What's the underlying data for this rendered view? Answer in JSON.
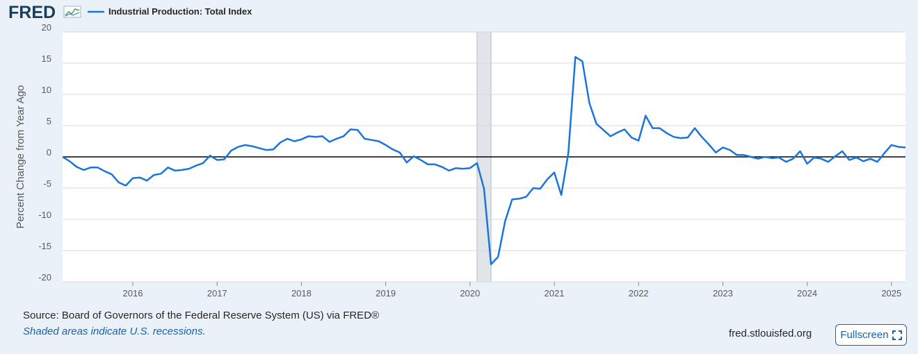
{
  "logo": {
    "text": "FRED"
  },
  "legend": {
    "series_label": "Industrial Production: Total Index",
    "line_color": "#1a74d9"
  },
  "footer": {
    "source": "Source: Board of Governors of the Federal Reserve System (US) via FRED®",
    "recession_note": "Shaded areas indicate U.S. recessions.",
    "site": "fred.stlouisfed.org",
    "fullscreen_label": "Fullscreen"
  },
  "colors": {
    "line": "#1a74d9",
    "recession": "#e1e4e8",
    "zero_line": "#000000",
    "brand": "#1761b5"
  },
  "chart_data": {
    "type": "line",
    "title": "Industrial Production: Total Index",
    "xlabel": "",
    "ylabel": "Percent Change from Year Ago",
    "ylim": [
      -20,
      20
    ],
    "xlim": [
      "2015-03-01",
      "2025-03-01"
    ],
    "yticks": [
      20,
      15,
      10,
      5,
      0,
      -5,
      -10,
      -15,
      -20
    ],
    "xticks": [
      "2016",
      "2017",
      "2018",
      "2019",
      "2020",
      "2021",
      "2022",
      "2023",
      "2024",
      "2025"
    ],
    "grid": true,
    "recessions": [
      {
        "start": "2020-02-01",
        "end": "2020-04-01"
      }
    ],
    "series": [
      {
        "name": "Industrial Production: Total Index",
        "x": [
          "2015-03",
          "2015-04",
          "2015-05",
          "2015-06",
          "2015-07",
          "2015-08",
          "2015-09",
          "2015-10",
          "2015-11",
          "2015-12",
          "2016-01",
          "2016-02",
          "2016-03",
          "2016-04",
          "2016-05",
          "2016-06",
          "2016-07",
          "2016-08",
          "2016-09",
          "2016-10",
          "2016-11",
          "2016-12",
          "2017-01",
          "2017-02",
          "2017-03",
          "2017-04",
          "2017-05",
          "2017-06",
          "2017-07",
          "2017-08",
          "2017-09",
          "2017-10",
          "2017-11",
          "2017-12",
          "2018-01",
          "2018-02",
          "2018-03",
          "2018-04",
          "2018-05",
          "2018-06",
          "2018-07",
          "2018-08",
          "2018-09",
          "2018-10",
          "2018-11",
          "2018-12",
          "2019-01",
          "2019-02",
          "2019-03",
          "2019-04",
          "2019-05",
          "2019-06",
          "2019-07",
          "2019-08",
          "2019-09",
          "2019-10",
          "2019-11",
          "2019-12",
          "2020-01",
          "2020-02",
          "2020-03",
          "2020-04",
          "2020-05",
          "2020-06",
          "2020-07",
          "2020-08",
          "2020-09",
          "2020-10",
          "2020-11",
          "2020-12",
          "2021-01",
          "2021-02",
          "2021-03",
          "2021-04",
          "2021-05",
          "2021-06",
          "2021-07",
          "2021-08",
          "2021-09",
          "2021-10",
          "2021-11",
          "2021-12",
          "2022-01",
          "2022-02",
          "2022-03",
          "2022-04",
          "2022-05",
          "2022-06",
          "2022-07",
          "2022-08",
          "2022-09",
          "2022-10",
          "2022-11",
          "2022-12",
          "2023-01",
          "2023-02",
          "2023-03",
          "2023-04",
          "2023-05",
          "2023-06",
          "2023-07",
          "2023-08",
          "2023-09",
          "2023-10",
          "2023-11",
          "2023-12",
          "2024-01",
          "2024-02",
          "2024-03",
          "2024-04",
          "2024-05",
          "2024-06",
          "2024-07",
          "2024-08",
          "2024-09",
          "2024-10",
          "2024-11",
          "2024-12",
          "2025-01",
          "2025-02",
          "2025-03"
        ],
        "y": [
          0.0,
          -0.7,
          -1.6,
          -2.1,
          -1.7,
          -1.7,
          -2.3,
          -2.8,
          -4.1,
          -4.6,
          -3.4,
          -3.3,
          -3.8,
          -2.9,
          -2.7,
          -1.7,
          -2.2,
          -2.1,
          -1.9,
          -1.4,
          -1.0,
          0.2,
          -0.5,
          -0.4,
          1.0,
          1.6,
          1.9,
          1.7,
          1.4,
          1.1,
          1.2,
          2.3,
          2.9,
          2.5,
          2.8,
          3.3,
          3.2,
          3.3,
          2.4,
          2.9,
          3.3,
          4.4,
          4.3,
          2.9,
          2.7,
          2.5,
          1.9,
          1.2,
          0.7,
          -0.9,
          0.1,
          -0.5,
          -1.2,
          -1.2,
          -1.6,
          -2.2,
          -1.8,
          -1.9,
          -1.8,
          -1.0,
          -5.1,
          -17.2,
          -16.0,
          -10.3,
          -6.8,
          -6.7,
          -6.4,
          -5.0,
          -5.1,
          -3.6,
          -2.5,
          -6.1,
          0.6,
          16.0,
          15.3,
          8.6,
          5.3,
          4.3,
          3.3,
          3.9,
          4.4,
          3.1,
          2.6,
          6.6,
          4.6,
          4.6,
          3.8,
          3.2,
          3.0,
          3.1,
          4.6,
          3.2,
          2.0,
          0.7,
          1.5,
          1.1,
          0.3,
          0.3,
          0.0,
          -0.3,
          0.0,
          -0.2,
          -0.1,
          -0.8,
          -0.3,
          0.9,
          -1.1,
          -0.1,
          -0.3,
          -0.8,
          0.1,
          0.9,
          -0.5,
          -0.1,
          -0.7,
          -0.3,
          -0.8,
          0.6,
          1.9,
          1.6,
          1.5
        ]
      }
    ]
  }
}
